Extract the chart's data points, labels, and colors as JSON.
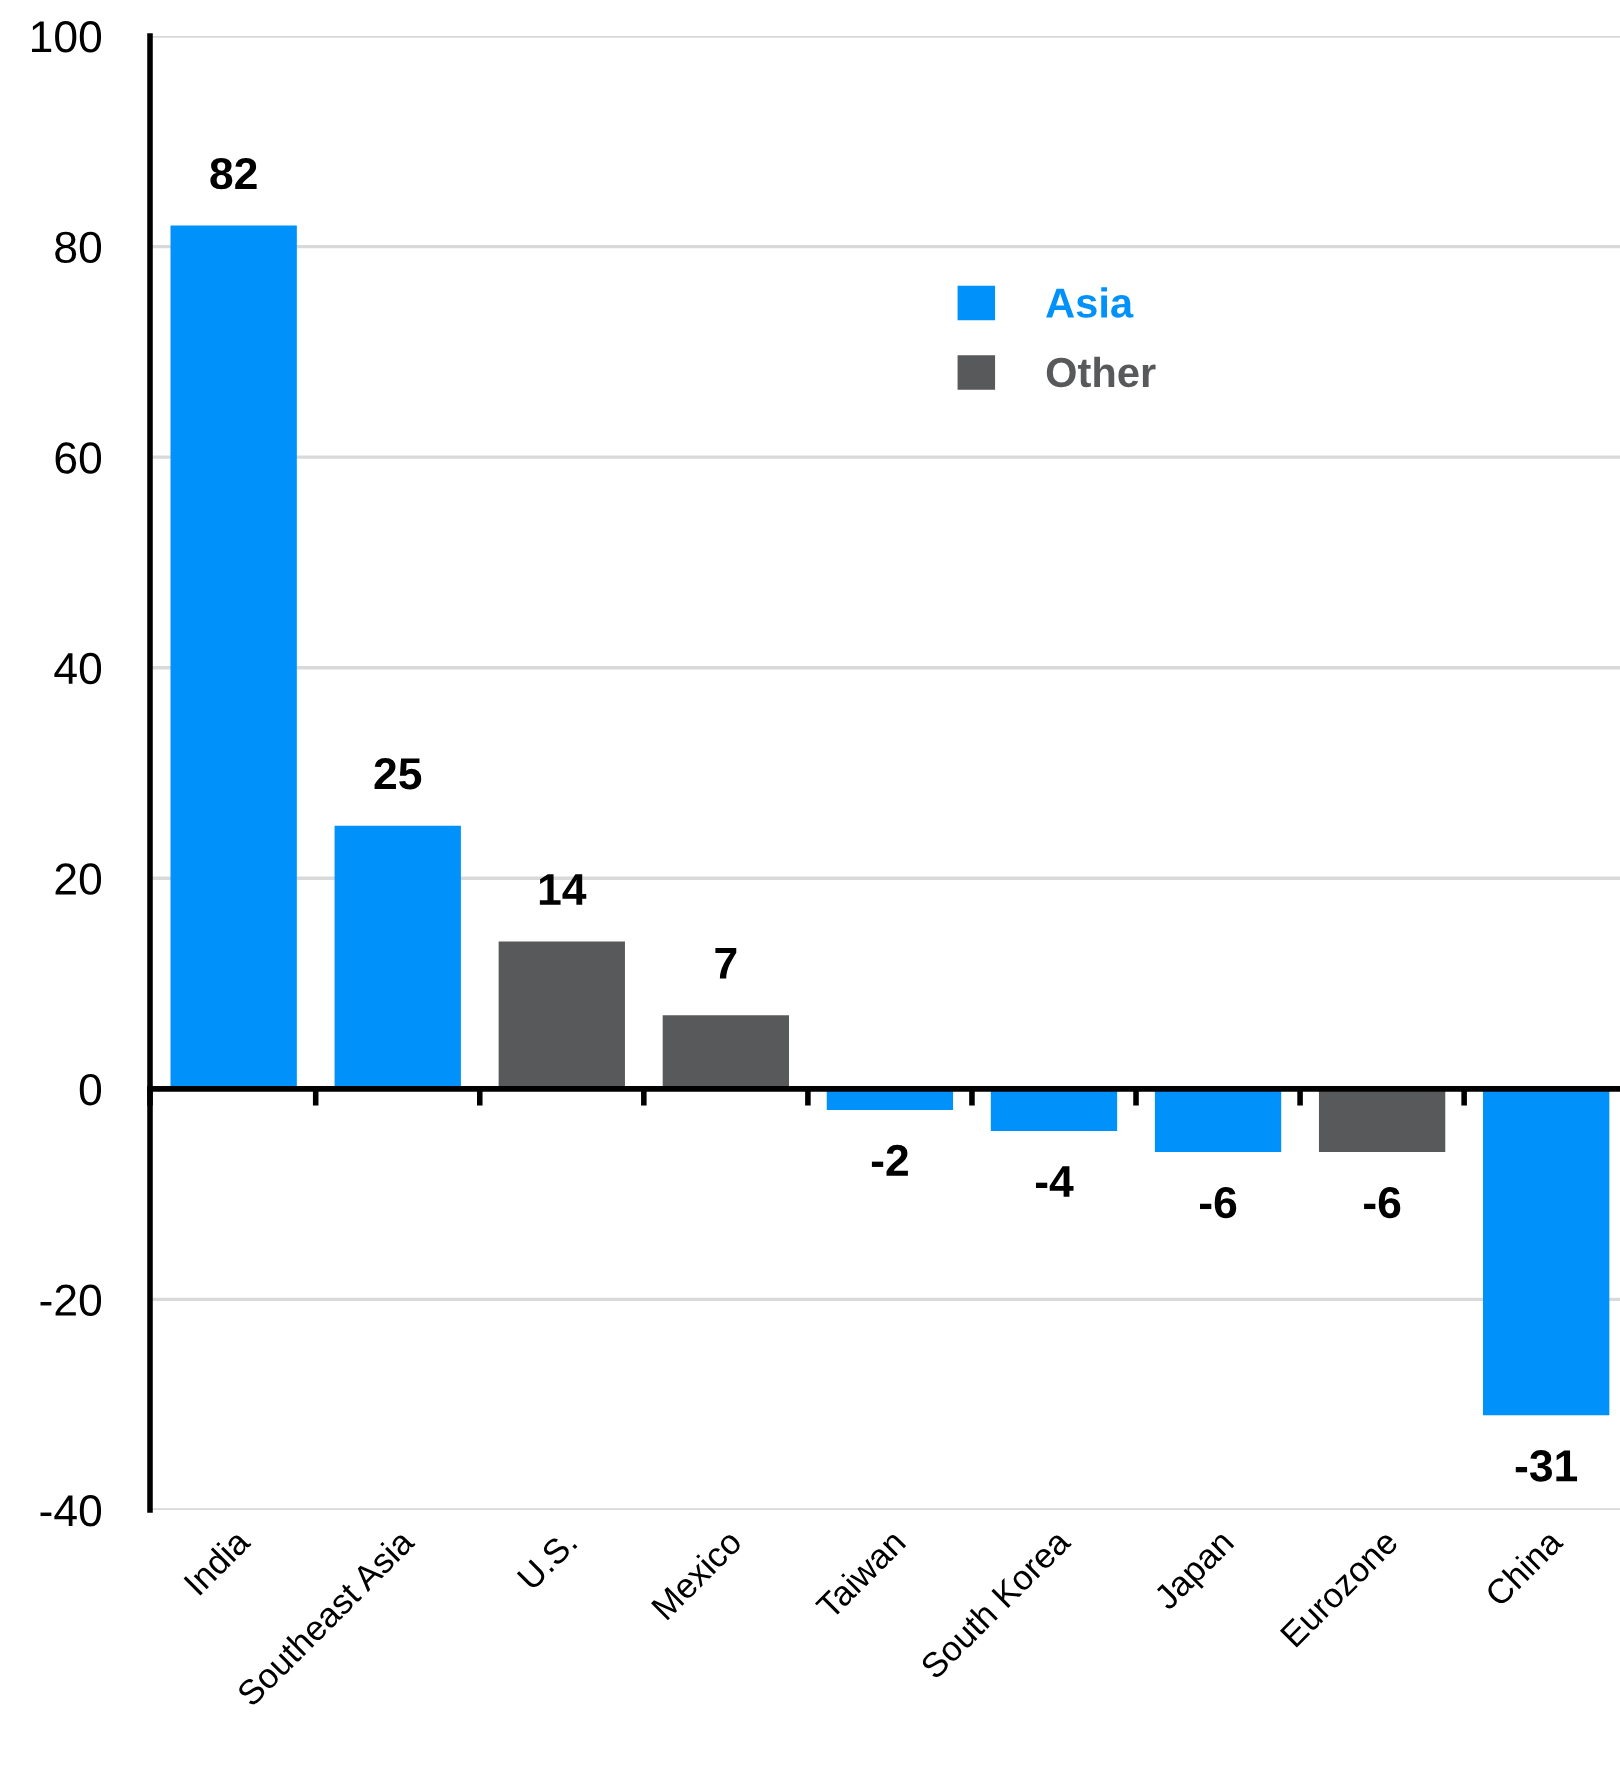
{
  "chart_data": {
    "type": "bar",
    "categories": [
      "India",
      "Southeast Asia",
      "U.S.",
      "Mexico",
      "Taiwan",
      "South Korea",
      "Japan",
      "Eurozone",
      "China"
    ],
    "series": [
      {
        "name": "Asia",
        "color": "#0091fa",
        "values": [
          82,
          25,
          null,
          null,
          -2,
          -4,
          -6,
          null,
          -31
        ]
      },
      {
        "name": "Other",
        "color": "#58595b",
        "values": [
          null,
          null,
          14,
          7,
          null,
          null,
          null,
          -6,
          null
        ]
      }
    ],
    "stacked": true,
    "ylim": [
      -40,
      100
    ],
    "yticks": [
      -40,
      -20,
      0,
      20,
      40,
      60,
      80,
      100
    ],
    "grid": "y",
    "legend": "top right",
    "data_labels": true
  }
}
